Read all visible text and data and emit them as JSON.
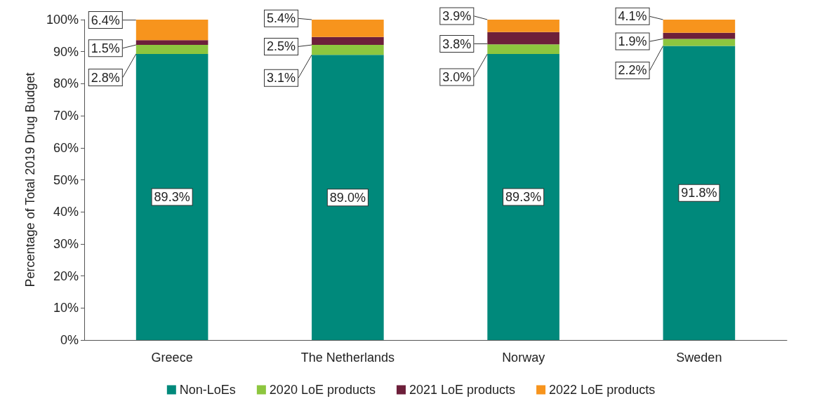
{
  "chart_data": {
    "type": "bar",
    "stacked": true,
    "ylabel": "Percentage of Total 2019 Drug Budget",
    "categories": [
      "Greece",
      "The Netherlands",
      "Norway",
      "Sweden"
    ],
    "series": [
      {
        "name": "Non-LoEs",
        "color": "#00897b",
        "values": [
          89.3,
          89.0,
          89.3,
          91.8
        ],
        "value_labels": [
          "89.3%",
          "89.0%",
          "89.3%",
          "91.8%"
        ]
      },
      {
        "name": "2020 LoE products",
        "color": "#8dc63f",
        "values": [
          2.8,
          3.1,
          3.0,
          2.2
        ],
        "value_labels": [
          "2.8%",
          "3.1%",
          "3.0%",
          "2.2%"
        ]
      },
      {
        "name": "2021 LoE products",
        "color": "#6d1f3a",
        "values": [
          1.5,
          2.5,
          3.8,
          1.9
        ],
        "value_labels": [
          "1.5%",
          "2.5%",
          "3.8%",
          "1.9%"
        ]
      },
      {
        "name": "2022 LoE products",
        "color": "#f7941d",
        "values": [
          6.4,
          5.4,
          3.9,
          4.1
        ],
        "value_labels": [
          "6.4%",
          "5.4%",
          "3.9%",
          "4.1%"
        ]
      }
    ],
    "ylim": [
      0,
      100
    ],
    "yticks": [
      {
        "value": 0,
        "label": "0%"
      },
      {
        "value": 10,
        "label": "10%"
      },
      {
        "value": 20,
        "label": "20%"
      },
      {
        "value": 30,
        "label": "30%"
      },
      {
        "value": 40,
        "label": "40%"
      },
      {
        "value": 50,
        "label": "50%"
      },
      {
        "value": 60,
        "label": "60%"
      },
      {
        "value": 70,
        "label": "70%"
      },
      {
        "value": 80,
        "label": "80%"
      },
      {
        "value": 90,
        "label": "90%"
      },
      {
        "value": 100,
        "label": "100%"
      }
    ],
    "legend": "bottom",
    "grid": false
  }
}
